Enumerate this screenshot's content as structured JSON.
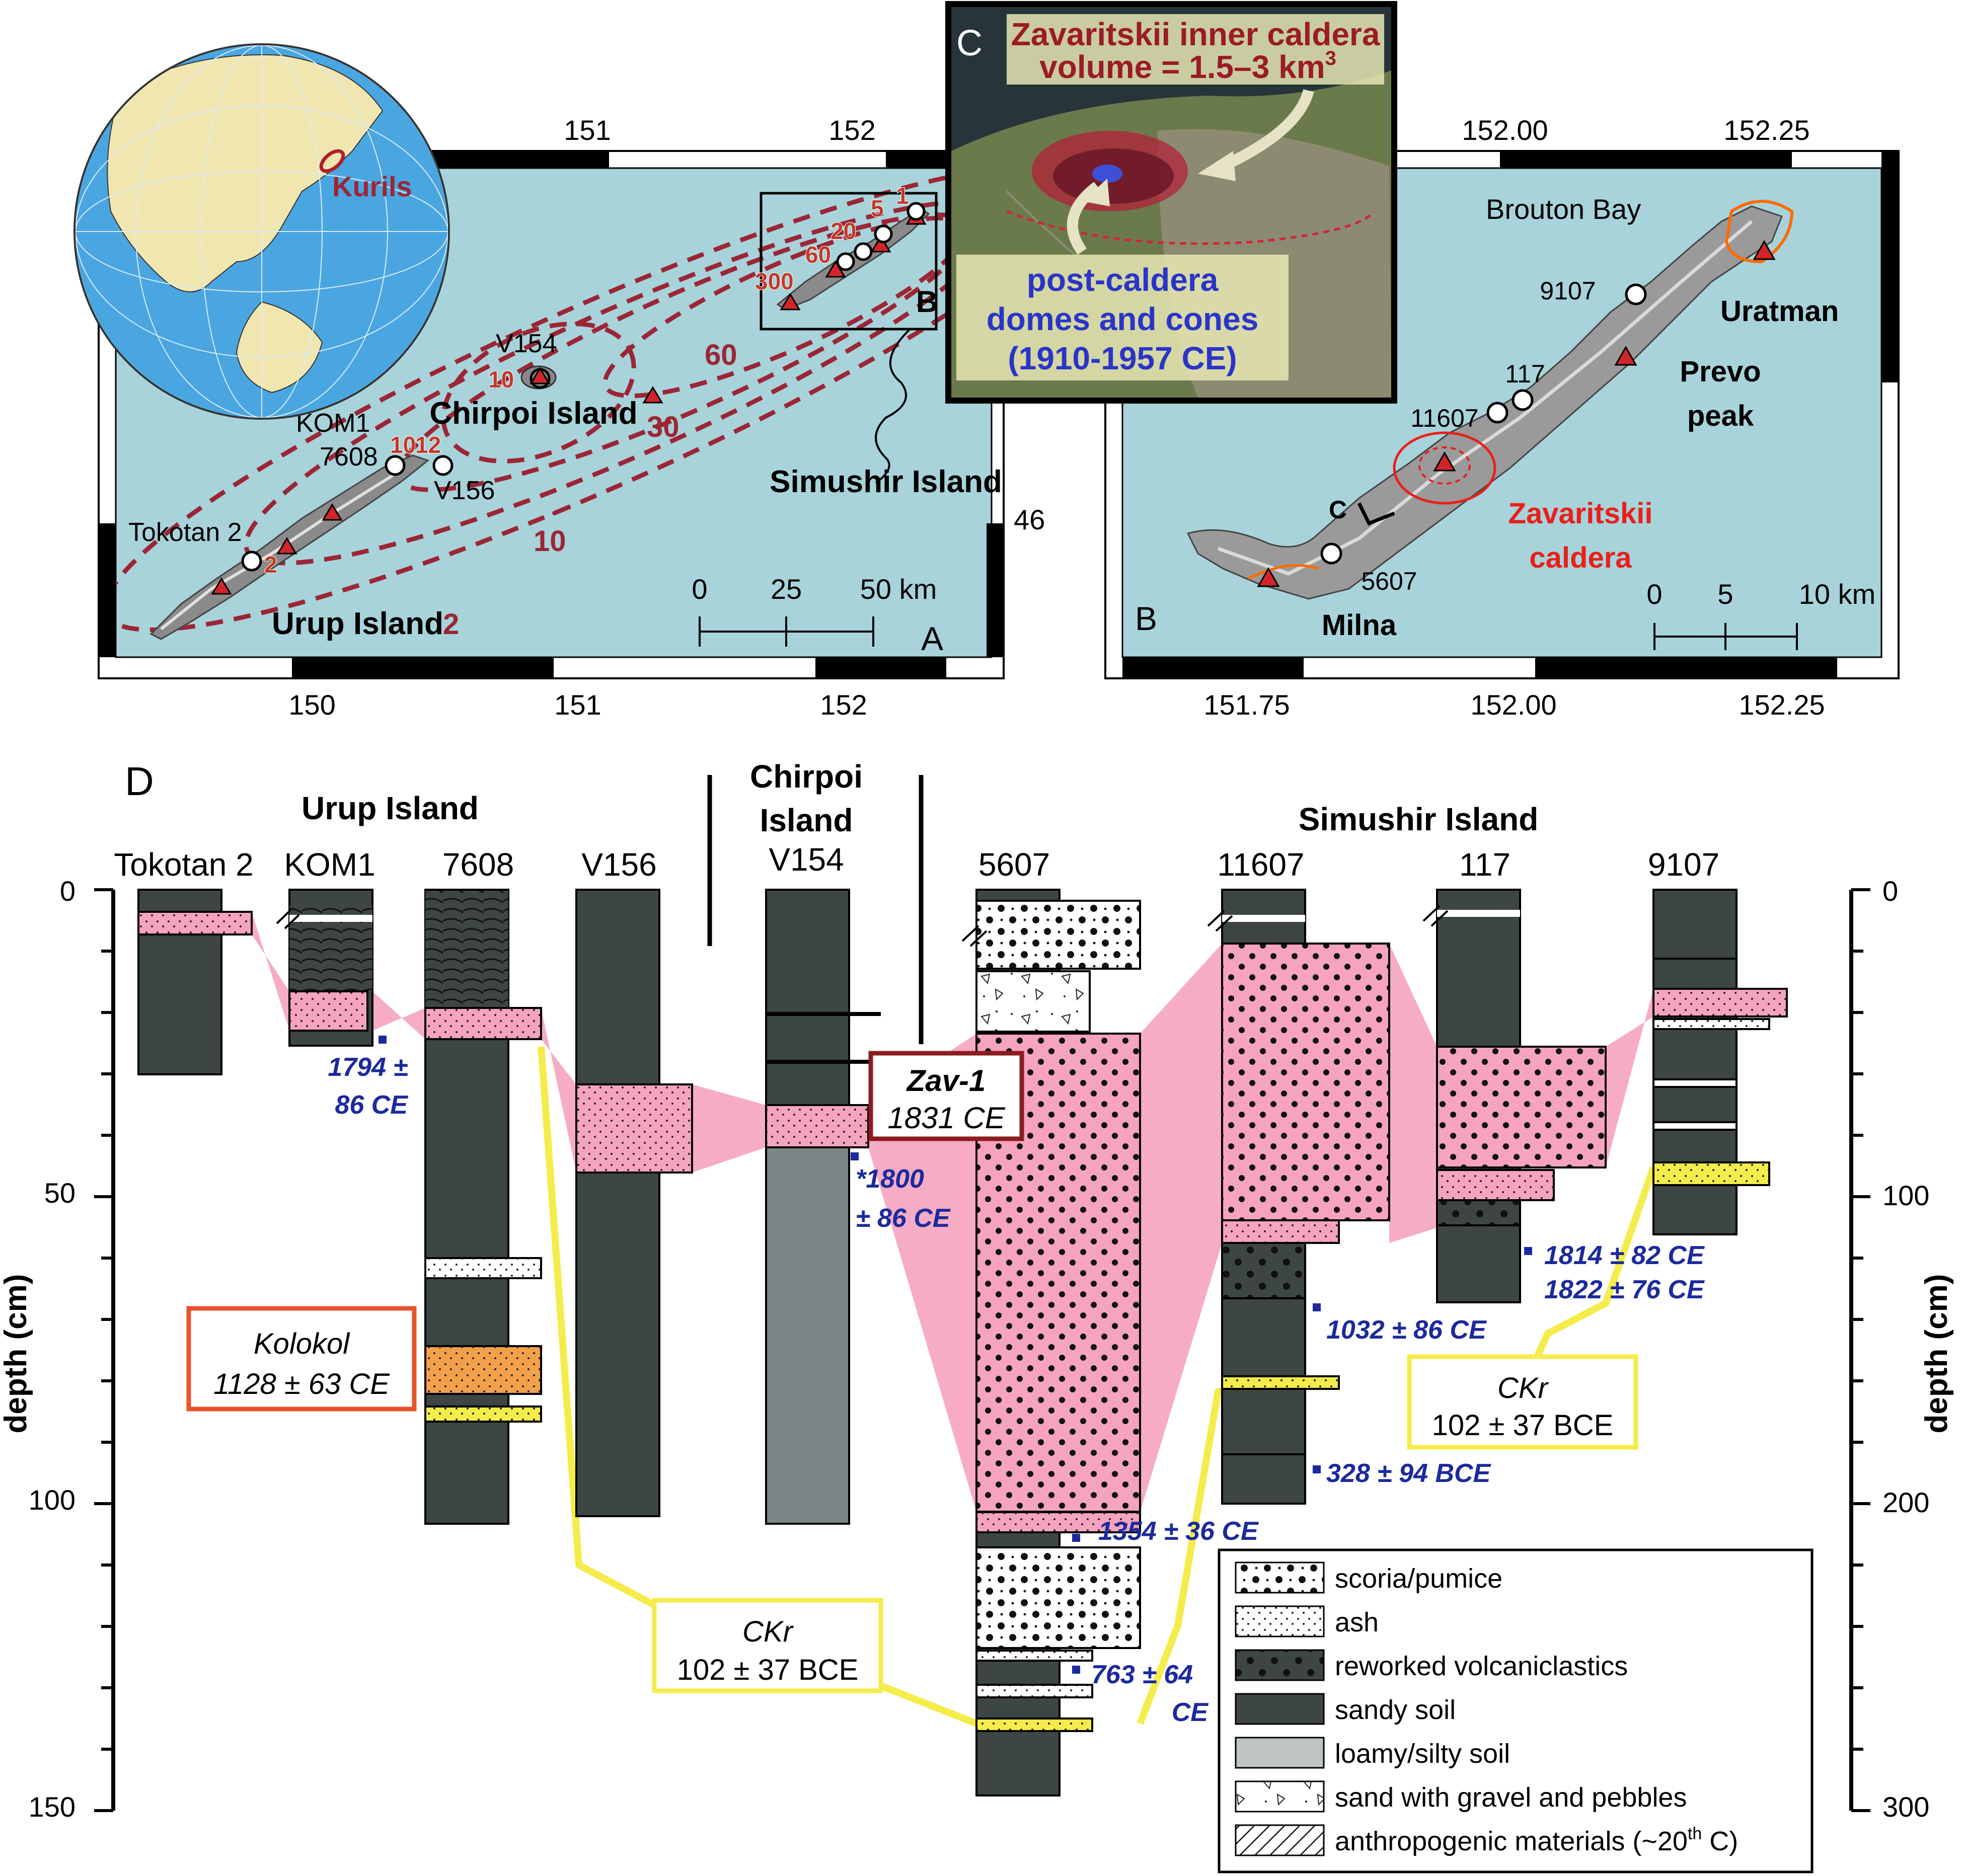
{
  "colors": {
    "sea": "#a8d3da",
    "soil": "#3e4545",
    "loam": "#7b8786",
    "pink": "#f5a3bf",
    "yellow": "#f4ec4a",
    "orange": "#f3a04a",
    "kolokolBox": "#e8532a",
    "isopach": "#9b2636",
    "dates": "#1c2a9c",
    "caldera": "#e8201c"
  },
  "panelA": {
    "label": "A",
    "lonTop": [
      "151",
      "152"
    ],
    "lonBottom": [
      "150",
      "151",
      "152"
    ],
    "latLabel": "46",
    "kurils": "Kurils",
    "islands": {
      "urup": "Urup Island",
      "chirpoi": "Chirpoi Island",
      "simushir": "Simushir Island"
    },
    "sites": {
      "tokotan": "Tokotan 2",
      "kom1": "KOM1",
      "s7608": "7608",
      "v156": "V156",
      "v154": "V154"
    },
    "isopachs": [
      "2",
      "10",
      "30",
      "60",
      "1",
      "5",
      "20",
      "60",
      "300",
      "10",
      "10",
      "12",
      "2"
    ],
    "inset": "B",
    "scale": [
      "0",
      "25",
      "50 km"
    ]
  },
  "panelB": {
    "label": "B",
    "lonTop": [
      "152.00",
      "152.25"
    ],
    "lonBottom": [
      "151.75",
      "152.00",
      "152.25"
    ],
    "places": {
      "brouton": "Brouton Bay",
      "uratman": "Uratman",
      "prevo": "Prevo peak",
      "zavaritskii": "Zavaritskii caldera",
      "milna": "Milna"
    },
    "sites": [
      "9107",
      "117",
      "11607",
      "5607"
    ],
    "view": "C",
    "scale": [
      "0",
      "5",
      "10 km"
    ]
  },
  "panelC": {
    "label": "C",
    "caldera_title": "Zavaritskii inner caldera",
    "volume": "volume = 1.5–3 km",
    "volume_sup": "3",
    "post_caldera": [
      "post-caldera",
      "domes and cones",
      "(1910-1957 CE)"
    ]
  },
  "panelD": {
    "label": "D",
    "groups": [
      "Urup Island",
      "Chirpoi Island",
      "Simushir Island"
    ],
    "columns": [
      "Tokotan 2",
      "KOM1",
      "7608",
      "V156",
      "V154",
      "5607",
      "11607",
      "117",
      "9107"
    ],
    "axis_title": "depth (cm)",
    "left_ticks": [
      "0",
      "50",
      "100",
      "150"
    ],
    "right_ticks": [
      "0",
      "100",
      "200",
      "300"
    ],
    "dates": {
      "kom1": [
        "1794 ±",
        "86 CE"
      ],
      "v154": [
        "*1800",
        "± 86 CE"
      ],
      "s117": [
        "1814 ± 82 CE",
        "1822 ± 76 CE"
      ],
      "s11607a": "1032 ± 86 CE",
      "s11607b": "328 ± 94 BCE",
      "s5607a": "1354 ± 36 CE",
      "s5607b": [
        "763 ± 64",
        "CE"
      ]
    },
    "zav": {
      "name": "Zav-1",
      "date": "1831 CE"
    },
    "kolokol": {
      "name": "Kolokol",
      "date": "1128 ± 63 CE"
    },
    "ckr_left": {
      "name": "CKr",
      "date": "102 ± 37 BCE"
    },
    "ckr_right": {
      "name": "CKr",
      "date": "102 ± 37 BCE"
    }
  },
  "legend": {
    "items": [
      "scoria/pumice",
      "ash",
      "reworked volcaniclastics",
      "sandy soil",
      "loamy/silty soil",
      "sand with gravel and pebbles",
      "anthropogenic materials (~20"
    ],
    "anthro_sup": "th",
    "anthro_end": " C)"
  }
}
